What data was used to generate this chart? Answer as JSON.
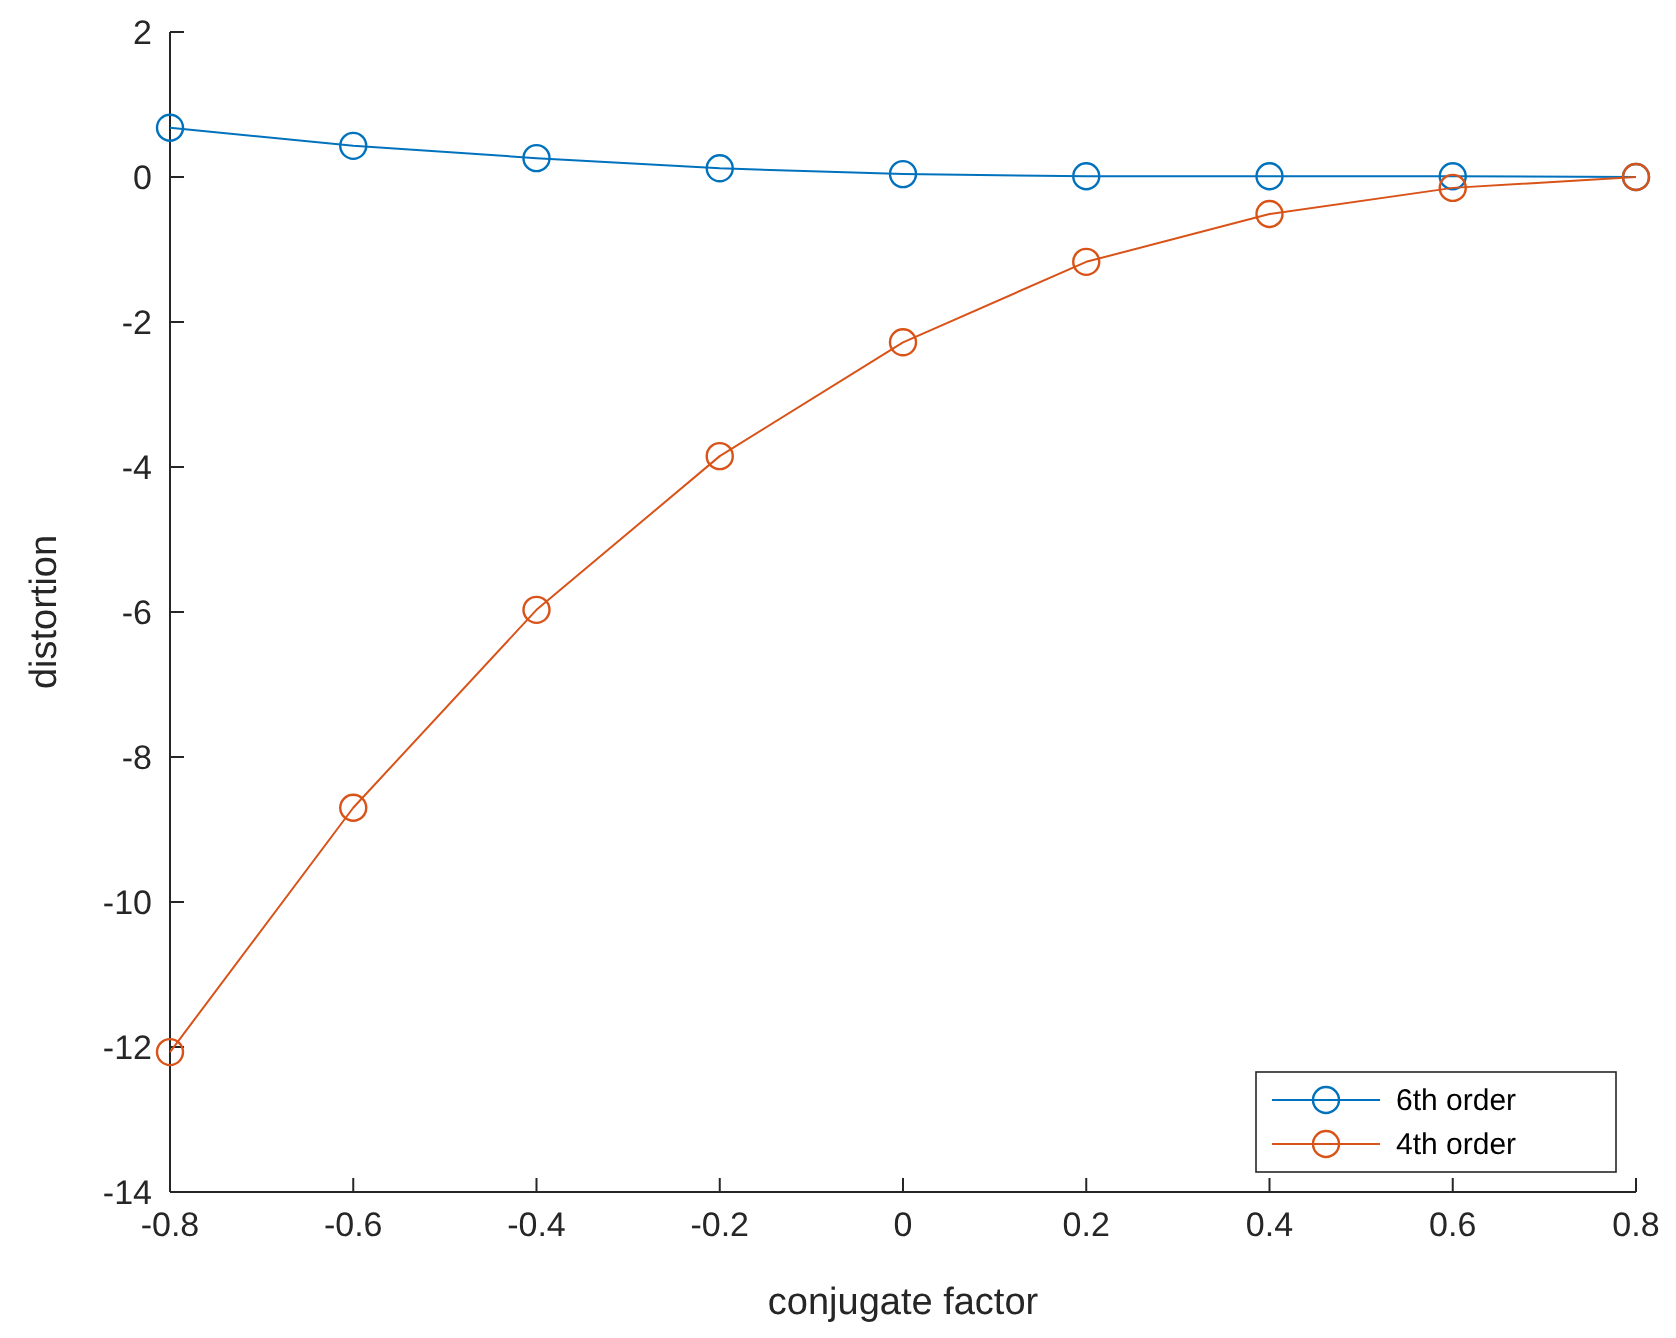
{
  "chart_data": {
    "type": "line",
    "xlabel": "conjugate factor",
    "ylabel": "distortion",
    "x": [
      -0.8,
      -0.6,
      -0.4,
      -0.2,
      0,
      0.2,
      0.4,
      0.6,
      0.8
    ],
    "series": [
      {
        "name": "6th order",
        "color": "#0072bd",
        "values": [
          0.68,
          0.43,
          0.26,
          0.12,
          0.04,
          0.01,
          0.01,
          0.01,
          0
        ]
      },
      {
        "name": "4th order",
        "color": "#d95319",
        "values": [
          -12.07,
          -8.7,
          -5.97,
          -3.85,
          -2.28,
          -1.17,
          -0.51,
          -0.15,
          0
        ]
      }
    ],
    "xlim": [
      -0.8,
      0.8
    ],
    "xticks": [
      -0.8,
      -0.6,
      -0.4,
      -0.2,
      0,
      0.2,
      0.4,
      0.6,
      0.8
    ],
    "ylim": [
      -14,
      2
    ],
    "yticks": [
      -14,
      -12,
      -10,
      -8,
      -6,
      -4,
      -2,
      0,
      2
    ],
    "grid": false,
    "legend": "bottom right",
    "marker": "circle",
    "line_style": "solid"
  }
}
